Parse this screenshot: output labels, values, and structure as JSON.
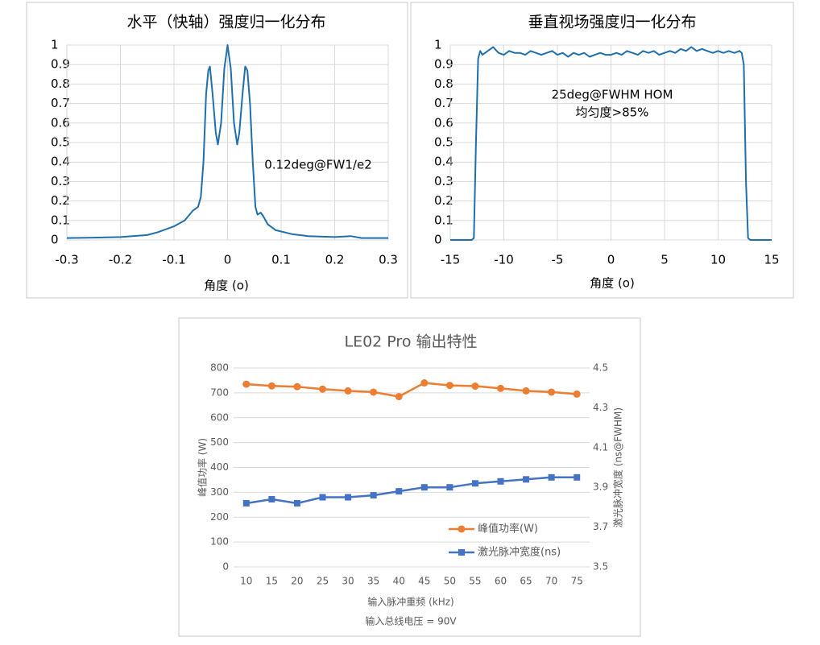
{
  "chart_data": [
    {
      "type": "line",
      "title": "水平（快轴）强度归一化分布",
      "x_label": "角度 (o)",
      "annotations": [
        "0.12deg@FW1/e2"
      ],
      "x": [
        -0.3,
        -0.25,
        -0.2,
        -0.15,
        -0.13,
        -0.1,
        -0.08,
        -0.065,
        -0.055,
        -0.05,
        -0.045,
        -0.04,
        -0.036,
        -0.033,
        -0.028,
        -0.022,
        -0.018,
        -0.012,
        -0.006,
        0,
        0.006,
        0.012,
        0.018,
        0.022,
        0.028,
        0.033,
        0.037,
        0.042,
        0.047,
        0.052,
        0.056,
        0.062,
        0.067,
        0.075,
        0.09,
        0.12,
        0.15,
        0.2,
        0.23,
        0.25,
        0.3
      ],
      "values": [
        0.01,
        0.012,
        0.015,
        0.025,
        0.04,
        0.07,
        0.1,
        0.15,
        0.17,
        0.22,
        0.4,
        0.75,
        0.87,
        0.89,
        0.75,
        0.55,
        0.49,
        0.6,
        0.88,
        1.0,
        0.88,
        0.6,
        0.49,
        0.55,
        0.75,
        0.89,
        0.87,
        0.7,
        0.4,
        0.17,
        0.13,
        0.14,
        0.12,
        0.08,
        0.05,
        0.03,
        0.02,
        0.015,
        0.02,
        0.01,
        0.01
      ],
      "color": "#1f6fad",
      "xlim": [
        -0.3,
        0.3
      ],
      "xticks": [
        -0.3,
        -0.2,
        -0.1,
        0,
        0.1,
        0.2,
        0.3
      ],
      "ylim": [
        0,
        1
      ],
      "yticks": [
        0,
        0.1,
        0.2,
        0.3,
        0.4,
        0.5,
        0.6,
        0.7,
        0.8,
        0.9,
        1
      ],
      "grid": "both"
    },
    {
      "type": "line",
      "title": "垂直视场强度归一化分布",
      "x_label": "角度 (o)",
      "annotations": [
        "25deg@FWHM HOM",
        "均匀度>85%"
      ],
      "x": [
        -15,
        -13,
        -12.8,
        -12.6,
        -12.4,
        -12.2,
        -12,
        -11.5,
        -11,
        -10.5,
        -10,
        -9.5,
        -9,
        -8.5,
        -8,
        -7.5,
        -7,
        -6.5,
        -6,
        -5.5,
        -5,
        -4.5,
        -4,
        -3.5,
        -3,
        -2.5,
        -2,
        -1.5,
        -1,
        -0.5,
        0,
        0.5,
        1,
        1.5,
        2,
        2.5,
        3,
        3.5,
        4,
        4.5,
        5,
        5.5,
        6,
        6.5,
        7,
        7.5,
        8,
        8.5,
        9,
        9.5,
        10,
        10.5,
        11,
        11.5,
        12,
        12.2,
        12.4,
        12.6,
        12.8,
        13,
        15
      ],
      "values": [
        0,
        0,
        0.01,
        0.5,
        0.93,
        0.97,
        0.95,
        0.97,
        0.99,
        0.96,
        0.95,
        0.97,
        0.96,
        0.96,
        0.95,
        0.97,
        0.96,
        0.95,
        0.96,
        0.97,
        0.95,
        0.96,
        0.94,
        0.96,
        0.95,
        0.96,
        0.94,
        0.95,
        0.96,
        0.95,
        0.95,
        0.96,
        0.95,
        0.97,
        0.96,
        0.95,
        0.97,
        0.96,
        0.97,
        0.95,
        0.96,
        0.97,
        0.96,
        0.98,
        0.97,
        0.99,
        0.97,
        0.98,
        0.97,
        0.96,
        0.97,
        0.96,
        0.97,
        0.96,
        0.97,
        0.96,
        0.9,
        0.3,
        0.01,
        0,
        0
      ],
      "color": "#1f6fad",
      "xlim": [
        -15,
        15
      ],
      "xticks": [
        -15,
        -10,
        -5,
        0,
        5,
        10,
        15
      ],
      "ylim": [
        0,
        1
      ],
      "yticks": [
        0,
        0.1,
        0.2,
        0.3,
        0.4,
        0.5,
        0.6,
        0.7,
        0.8,
        0.9,
        1
      ],
      "grid": "both"
    },
    {
      "type": "line",
      "title": "LE02 Pro 输出特性",
      "x_label": "输入脉冲重频 (kHz)",
      "note": "输入总线电压 = 90V",
      "y_label": "峰值功率 (W)",
      "y2_label": "激光脉冲宽度 (ns@FWHM)",
      "categories": [
        "10",
        "15",
        "20",
        "25",
        "30",
        "35",
        "40",
        "45",
        "50",
        "55",
        "60",
        "65",
        "70",
        "75"
      ],
      "series": [
        {
          "name": "峰值功率(W)",
          "color": "#ed7d31",
          "marker": "circle",
          "values": [
            735,
            728,
            725,
            715,
            708,
            703,
            685,
            740,
            730,
            727,
            718,
            708,
            703,
            695
          ]
        },
        {
          "name": "激光脉冲宽度(ns)",
          "color": "#4472c4",
          "marker": "square",
          "axis": "y2",
          "values": [
            3.82,
            3.84,
            3.82,
            3.85,
            3.85,
            3.86,
            3.88,
            3.9,
            3.9,
            3.92,
            3.93,
            3.94,
            3.95,
            3.95
          ]
        }
      ],
      "ylim": [
        0,
        800
      ],
      "yticks": [
        0,
        100,
        200,
        300,
        400,
        500,
        600,
        700,
        800
      ],
      "y2lim": [
        3.5,
        4.5
      ],
      "y2ticks": [
        3.5,
        3.7,
        3.9,
        4.1,
        4.3,
        4.5
      ],
      "grid": "y",
      "legend": "lower right"
    }
  ]
}
